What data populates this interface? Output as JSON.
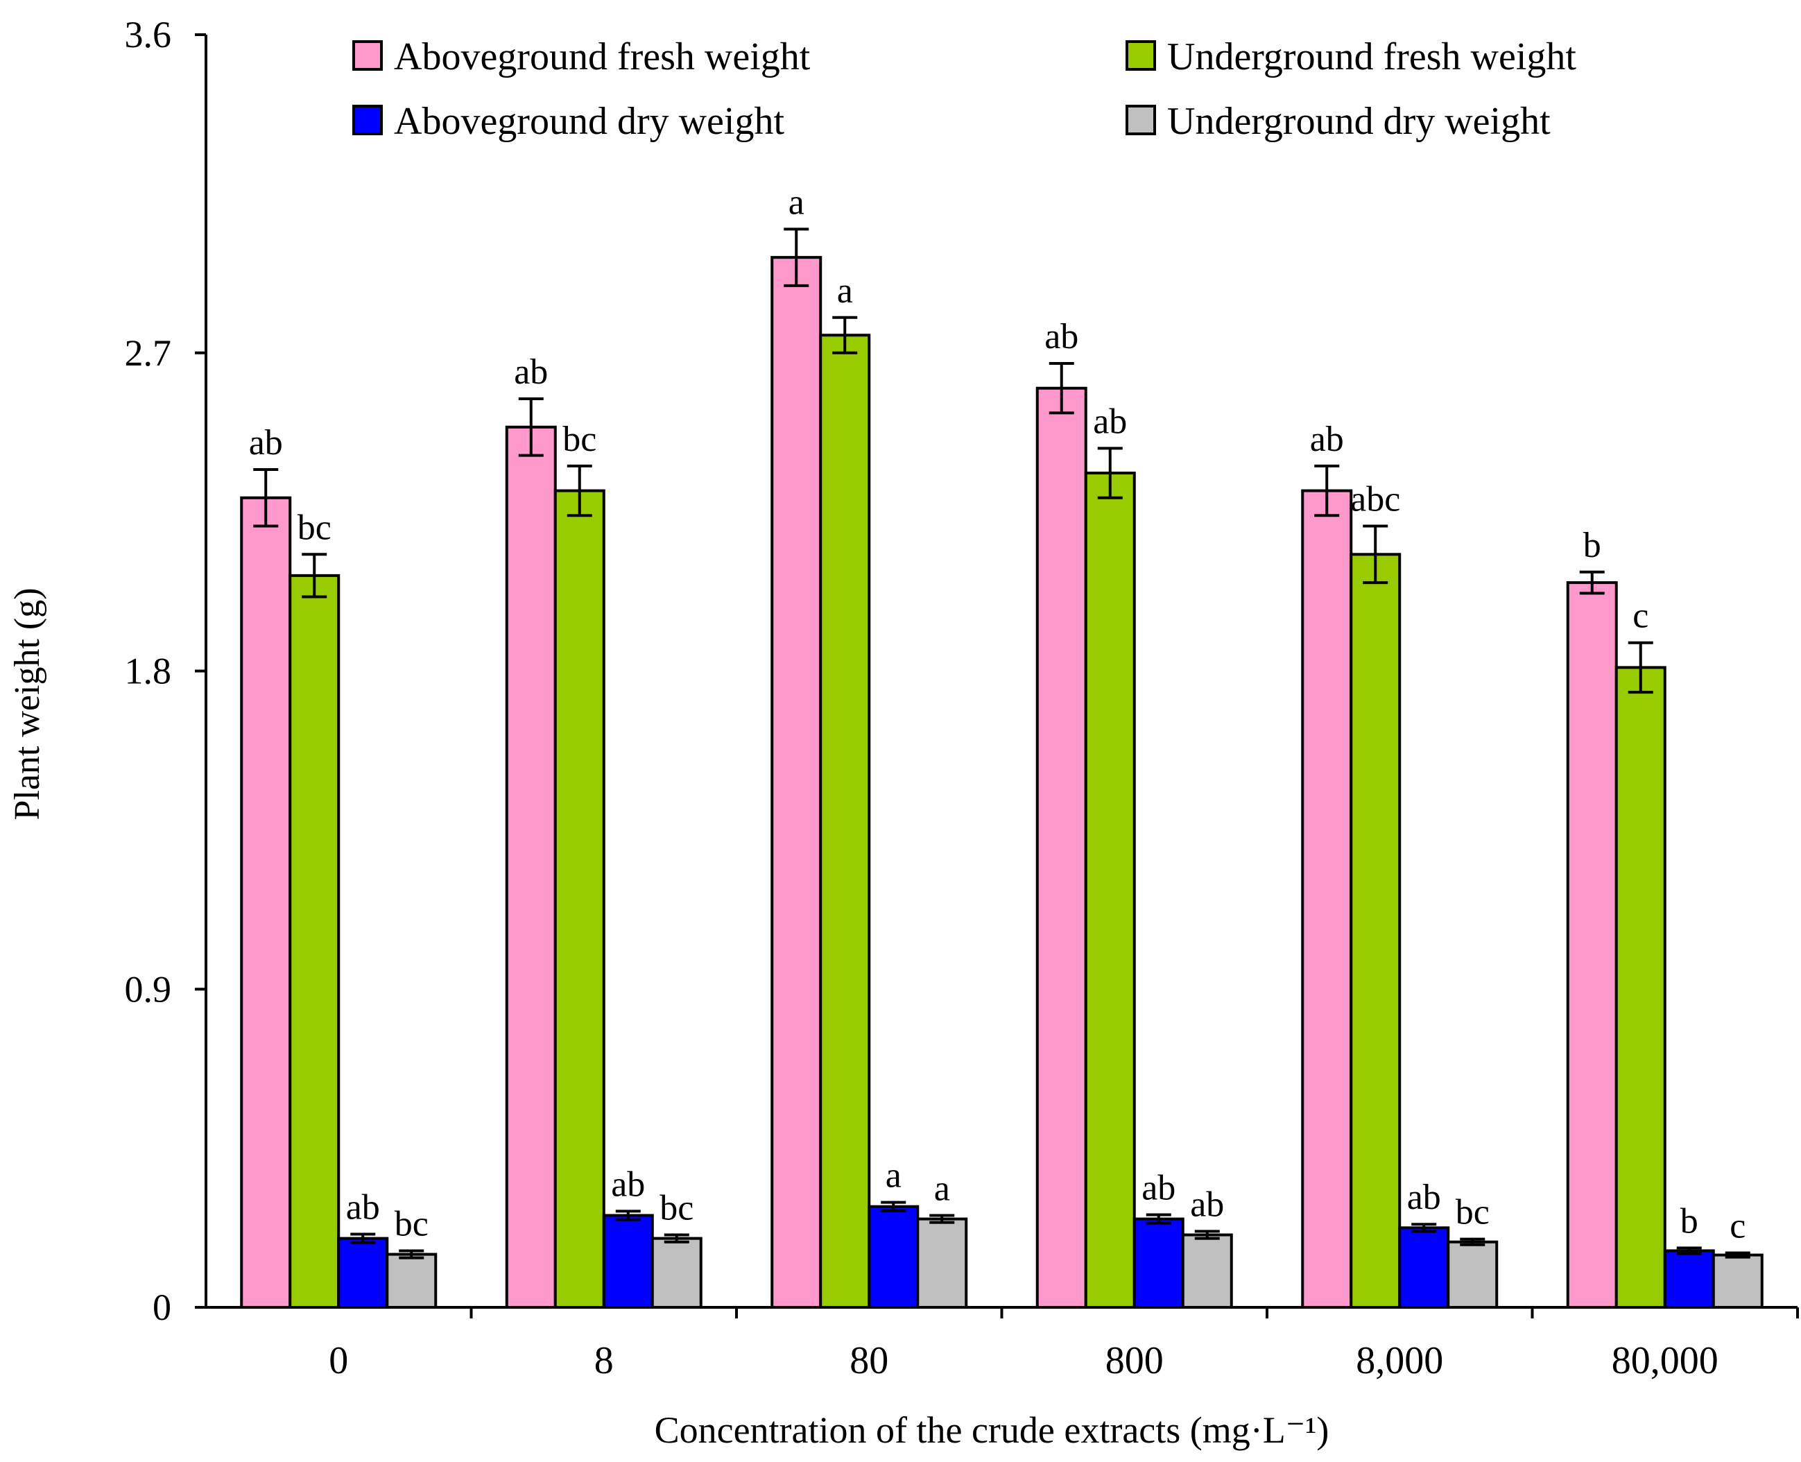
{
  "chart_data": {
    "type": "bar",
    "title": "",
    "xlabel": "Concentration of the crude extracts (mg·L⁻¹)",
    "ylabel": "Plant weight (g)",
    "ylim": [
      0,
      3.6
    ],
    "yticks": [
      "0",
      "0.9",
      "1.8",
      "2.7",
      "3.6"
    ],
    "ytick_values": [
      0,
      0.9,
      1.8,
      2.7,
      3.6
    ],
    "categories": [
      "0",
      "8",
      "80",
      "800",
      "8,000",
      "80,000"
    ],
    "legend_position": "top",
    "series": [
      {
        "name": "Aboveground fresh weight",
        "color": "#ff99cc",
        "values": [
          2.29,
          2.49,
          2.97,
          2.6,
          2.31,
          2.05
        ],
        "errors": [
          0.08,
          0.08,
          0.08,
          0.07,
          0.07,
          0.03
        ],
        "labels": [
          "ab",
          "ab",
          "a",
          "ab",
          "ab",
          "b"
        ]
      },
      {
        "name": "Underground fresh weight",
        "color": "#99cc00",
        "values": [
          2.07,
          2.31,
          2.75,
          2.36,
          2.13,
          1.81
        ],
        "errors": [
          0.06,
          0.07,
          0.05,
          0.07,
          0.08,
          0.07
        ],
        "labels": [
          "bc",
          "bc",
          "a",
          "ab",
          "abc",
          "c"
        ]
      },
      {
        "name": "Aboveground dry weight",
        "color": "#0000ff",
        "values": [
          0.195,
          0.26,
          0.285,
          0.25,
          0.225,
          0.16
        ],
        "errors": [
          0.012,
          0.012,
          0.012,
          0.012,
          0.01,
          0.008
        ],
        "labels": [
          "ab",
          "ab",
          "a",
          "ab",
          "ab",
          "b"
        ]
      },
      {
        "name": "Underground dry weight",
        "color": "#c0c0c0",
        "values": [
          0.15,
          0.195,
          0.25,
          0.205,
          0.185,
          0.148
        ],
        "errors": [
          0.01,
          0.01,
          0.01,
          0.01,
          0.008,
          0.006
        ],
        "labels": [
          "bc",
          "bc",
          "a",
          "ab",
          "bc",
          "c"
        ]
      }
    ]
  }
}
